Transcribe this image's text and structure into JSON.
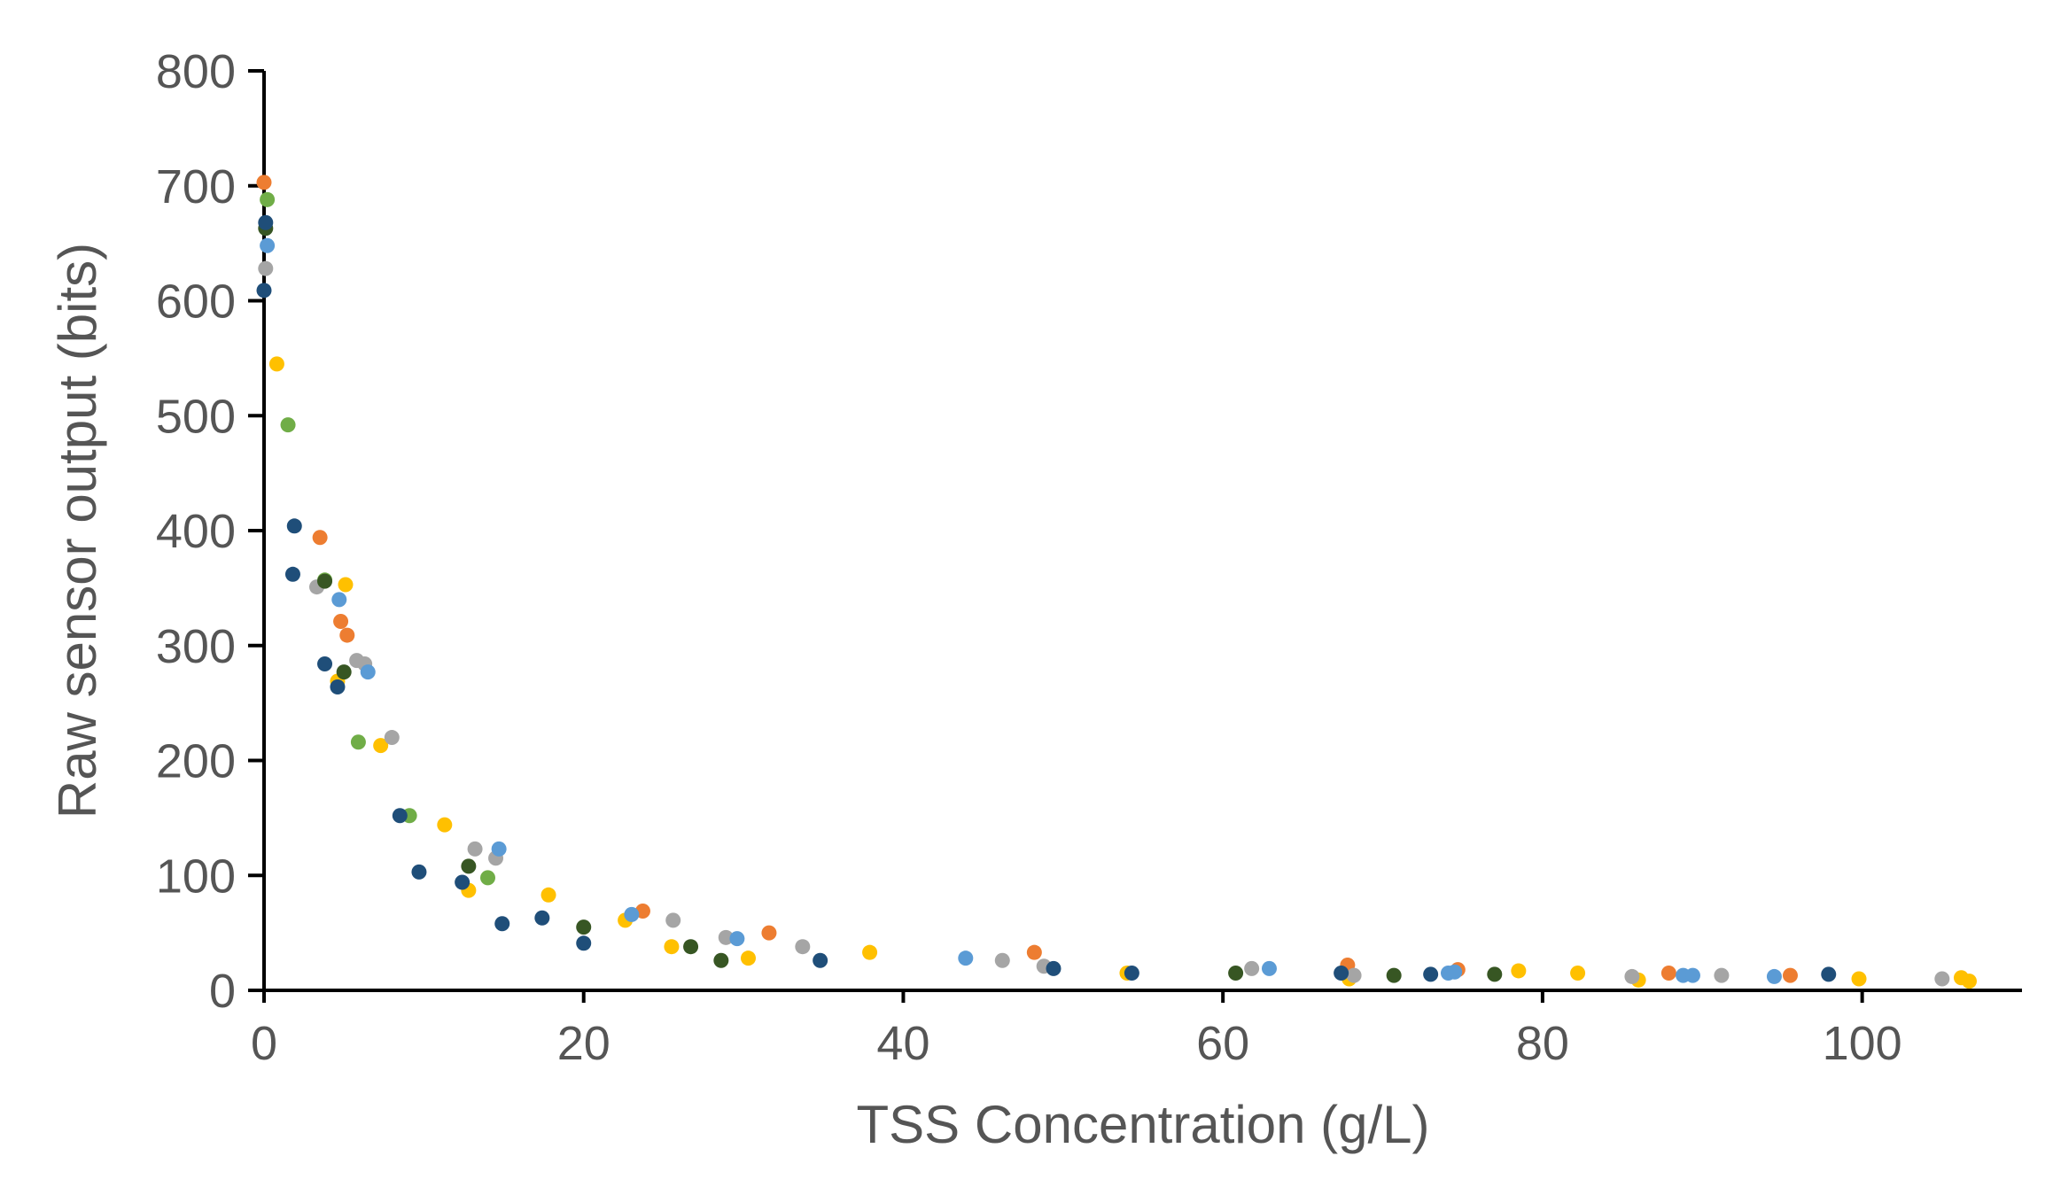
{
  "chart_data": {
    "type": "scatter",
    "xlabel": "TSS Concentration (g/L)",
    "ylabel": "Raw sensor output (bits)",
    "xlim": [
      0,
      110
    ],
    "ylim": [
      0,
      800
    ],
    "x_ticks": [
      0,
      20,
      40,
      60,
      80,
      100
    ],
    "y_ticks": [
      0,
      100,
      200,
      300,
      400,
      500,
      600,
      700,
      800
    ],
    "grid": false,
    "legend": "none",
    "series": [
      {
        "color": "#ED7D31",
        "points": [
          [
            0,
            703
          ],
          [
            3.5,
            394
          ],
          [
            4.8,
            321
          ],
          [
            5.2,
            309
          ],
          [
            23.7,
            69
          ],
          [
            31.6,
            50
          ],
          [
            48.2,
            33
          ],
          [
            67.8,
            22
          ],
          [
            74.7,
            18
          ],
          [
            87.9,
            15
          ],
          [
            95.5,
            13
          ]
        ]
      },
      {
        "color": "#FFC000",
        "points": [
          [
            0.8,
            545
          ],
          [
            5.1,
            353
          ],
          [
            4.6,
            269
          ],
          [
            7.3,
            213
          ],
          [
            11.3,
            144
          ],
          [
            12.8,
            87
          ],
          [
            17.8,
            83
          ],
          [
            22.6,
            61
          ],
          [
            25.5,
            38
          ],
          [
            30.3,
            28
          ],
          [
            37.9,
            33
          ],
          [
            54.0,
            15
          ],
          [
            67.9,
            10
          ],
          [
            78.5,
            17
          ],
          [
            82.2,
            15
          ],
          [
            86.0,
            9
          ],
          [
            99.8,
            10
          ],
          [
            106.2,
            11
          ],
          [
            106.7,
            8
          ]
        ]
      },
      {
        "color": "#A5A5A5",
        "points": [
          [
            0.1,
            628
          ],
          [
            3.3,
            351
          ],
          [
            5.8,
            287
          ],
          [
            6.3,
            284
          ],
          [
            8.0,
            220
          ],
          [
            13.2,
            123
          ],
          [
            14.5,
            115
          ],
          [
            25.6,
            61
          ],
          [
            28.9,
            46
          ],
          [
            33.7,
            38
          ],
          [
            46.2,
            26
          ],
          [
            48.8,
            21
          ],
          [
            61.8,
            19
          ],
          [
            68.2,
            13
          ],
          [
            85.6,
            12
          ],
          [
            91.2,
            13
          ],
          [
            105.0,
            10
          ]
        ]
      },
      {
        "color": "#70AD47",
        "points": [
          [
            0.2,
            688
          ],
          [
            1.5,
            492
          ],
          [
            3.8,
            357
          ],
          [
            5.9,
            216
          ],
          [
            9.1,
            152
          ],
          [
            14.0,
            98
          ]
        ]
      },
      {
        "color": "#5B9BD5",
        "points": [
          [
            0.2,
            648
          ],
          [
            4.7,
            340
          ],
          [
            6.5,
            277
          ],
          [
            14.7,
            123
          ],
          [
            23.0,
            66
          ],
          [
            29.6,
            45
          ],
          [
            43.9,
            28
          ],
          [
            62.9,
            19
          ],
          [
            74.1,
            15
          ],
          [
            74.5,
            16
          ],
          [
            88.8,
            13
          ],
          [
            89.4,
            13
          ],
          [
            94.5,
            12
          ]
        ]
      },
      {
        "color": "#375623",
        "points": [
          [
            0.1,
            663
          ],
          [
            3.8,
            356
          ],
          [
            5.0,
            277
          ],
          [
            12.8,
            108
          ],
          [
            20.0,
            55
          ],
          [
            26.7,
            38
          ],
          [
            28.6,
            26
          ],
          [
            60.8,
            15
          ],
          [
            70.7,
            13
          ],
          [
            77.0,
            14
          ]
        ]
      },
      {
        "color": "#1F4E79",
        "points": [
          [
            0,
            609
          ],
          [
            0.1,
            668
          ],
          [
            1.9,
            404
          ],
          [
            1.8,
            362
          ],
          [
            3.8,
            284
          ],
          [
            4.6,
            264
          ],
          [
            8.5,
            152
          ],
          [
            9.7,
            103
          ],
          [
            12.4,
            94
          ],
          [
            14.9,
            58
          ],
          [
            17.4,
            63
          ],
          [
            20.0,
            41
          ],
          [
            34.8,
            26
          ],
          [
            49.4,
            19
          ],
          [
            54.3,
            15
          ],
          [
            67.4,
            15
          ],
          [
            73.0,
            14
          ],
          [
            97.9,
            14
          ]
        ]
      }
    ]
  }
}
